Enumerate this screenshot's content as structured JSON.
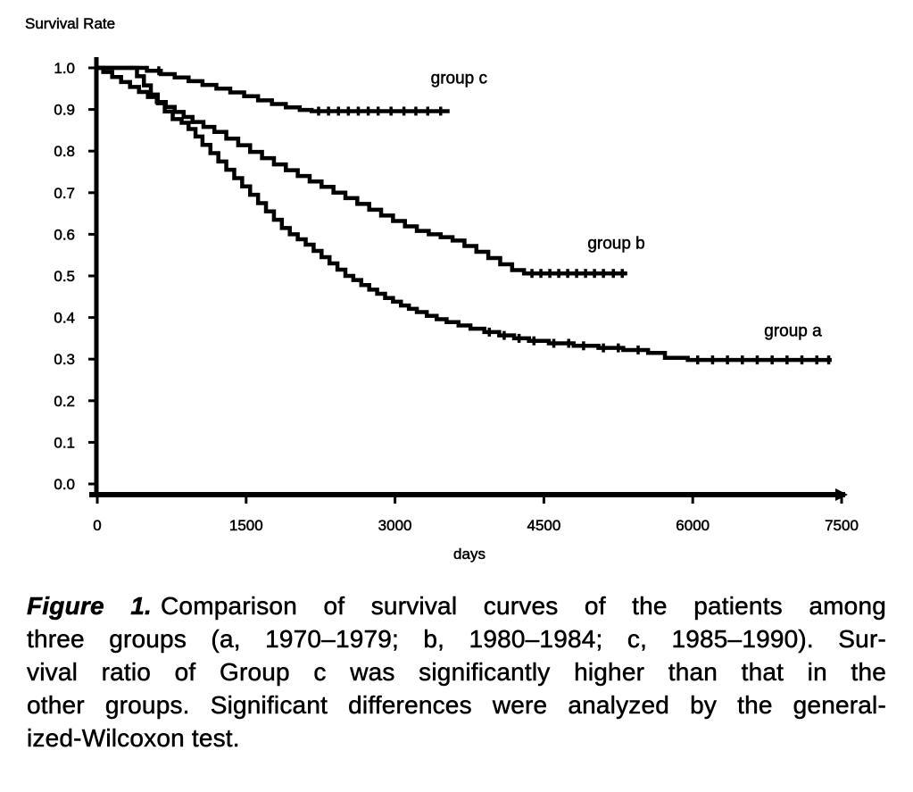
{
  "page": {
    "background_color": "#ffffff",
    "ink_color": "#000000"
  },
  "chart_data": {
    "type": "line",
    "style": "kaplan-meier-step",
    "title": "",
    "ylabel": "Survival Rate",
    "xlabel": "days",
    "xlim": [
      0,
      7500
    ],
    "ylim": [
      0.0,
      1.0
    ],
    "grid": false,
    "legend_position": "inline-labels",
    "line_color": "#000000",
    "x_ticks": [
      {
        "value": 0,
        "label": "0"
      },
      {
        "value": 1500,
        "label": "1500"
      },
      {
        "value": 3000,
        "label": "3000"
      },
      {
        "value": 4500,
        "label": "4500"
      },
      {
        "value": 6000,
        "label": "6000"
      },
      {
        "value": 7500,
        "label": "7500"
      }
    ],
    "y_ticks": [
      {
        "value": 1.0,
        "label": "1.0"
      },
      {
        "value": 0.9,
        "label": "0.9"
      },
      {
        "value": 0.8,
        "label": "0.8"
      },
      {
        "value": 0.7,
        "label": "0.7"
      },
      {
        "value": 0.6,
        "label": "0.6"
      },
      {
        "value": 0.5,
        "label": "0.5"
      },
      {
        "value": 0.4,
        "label": "0.4"
      },
      {
        "value": 0.3,
        "label": "0.3"
      },
      {
        "value": 0.2,
        "label": "0.2"
      },
      {
        "value": 0.1,
        "label": "0.1"
      },
      {
        "value": 0.0,
        "label": "0.0"
      }
    ],
    "series": [
      {
        "name": "group c",
        "label": "group c",
        "label_at": {
          "day": 3360,
          "value": 0.975
        },
        "end_day": 3550,
        "points": [
          [
            0,
            1.0
          ],
          [
            380,
            1.0
          ],
          [
            500,
            0.993
          ],
          [
            640,
            0.985
          ],
          [
            780,
            0.977
          ],
          [
            920,
            0.968
          ],
          [
            1060,
            0.959
          ],
          [
            1200,
            0.95
          ],
          [
            1340,
            0.941
          ],
          [
            1480,
            0.932
          ],
          [
            1620,
            0.922
          ],
          [
            1760,
            0.913
          ],
          [
            1900,
            0.905
          ],
          [
            2040,
            0.899
          ],
          [
            2160,
            0.896
          ],
          [
            3550,
            0.896
          ]
        ],
        "censor_days": [
          620,
          2230,
          2330,
          2430,
          2530,
          2630,
          2730,
          2830,
          2960,
          3090,
          3210,
          3330,
          3460
        ]
      },
      {
        "name": "group b",
        "label": "group b",
        "label_at": {
          "day": 4940,
          "value": 0.578
        },
        "end_day": 5340,
        "points": [
          [
            0,
            1.0
          ],
          [
            60,
            0.99
          ],
          [
            150,
            0.978
          ],
          [
            240,
            0.966
          ],
          [
            330,
            0.954
          ],
          [
            420,
            0.942
          ],
          [
            510,
            0.93
          ],
          [
            600,
            0.918
          ],
          [
            690,
            0.906
          ],
          [
            780,
            0.894
          ],
          [
            870,
            0.882
          ],
          [
            960,
            0.87
          ],
          [
            1070,
            0.858
          ],
          [
            1180,
            0.846
          ],
          [
            1300,
            0.83
          ],
          [
            1420,
            0.814
          ],
          [
            1540,
            0.798
          ],
          [
            1660,
            0.783
          ],
          [
            1780,
            0.768
          ],
          [
            1900,
            0.754
          ],
          [
            2020,
            0.74
          ],
          [
            2140,
            0.727
          ],
          [
            2260,
            0.714
          ],
          [
            2380,
            0.7
          ],
          [
            2500,
            0.687
          ],
          [
            2620,
            0.673
          ],
          [
            2740,
            0.659
          ],
          [
            2860,
            0.645
          ],
          [
            2980,
            0.632
          ],
          [
            3100,
            0.619
          ],
          [
            3220,
            0.608
          ],
          [
            3340,
            0.6
          ],
          [
            3460,
            0.593
          ],
          [
            3580,
            0.585
          ],
          [
            3700,
            0.572
          ],
          [
            3820,
            0.558
          ],
          [
            3940,
            0.543
          ],
          [
            4060,
            0.528
          ],
          [
            4180,
            0.514
          ],
          [
            4300,
            0.506
          ],
          [
            5340,
            0.506
          ]
        ],
        "censor_days": [
          4380,
          4470,
          4560,
          4650,
          4740,
          4830,
          4920,
          5010,
          5100,
          5200,
          5290
        ]
      },
      {
        "name": "group a",
        "label": "group a",
        "label_at": {
          "day": 6720,
          "value": 0.368
        },
        "end_day": 7400,
        "points": [
          [
            0,
            1.0
          ],
          [
            320,
            1.0
          ],
          [
            400,
            0.98
          ],
          [
            470,
            0.958
          ],
          [
            540,
            0.936
          ],
          [
            610,
            0.915
          ],
          [
            680,
            0.895
          ],
          [
            760,
            0.877
          ],
          [
            850,
            0.868
          ],
          [
            920,
            0.853
          ],
          [
            990,
            0.835
          ],
          [
            1060,
            0.815
          ],
          [
            1140,
            0.795
          ],
          [
            1220,
            0.775
          ],
          [
            1300,
            0.755
          ],
          [
            1380,
            0.735
          ],
          [
            1460,
            0.715
          ],
          [
            1540,
            0.695
          ],
          [
            1620,
            0.675
          ],
          [
            1700,
            0.655
          ],
          [
            1780,
            0.635
          ],
          [
            1860,
            0.615
          ],
          [
            1940,
            0.6
          ],
          [
            2020,
            0.588
          ],
          [
            2100,
            0.575
          ],
          [
            2180,
            0.56
          ],
          [
            2260,
            0.545
          ],
          [
            2340,
            0.53
          ],
          [
            2420,
            0.515
          ],
          [
            2500,
            0.5
          ],
          [
            2580,
            0.49
          ],
          [
            2660,
            0.478
          ],
          [
            2740,
            0.467
          ],
          [
            2820,
            0.457
          ],
          [
            2900,
            0.447
          ],
          [
            2980,
            0.438
          ],
          [
            3060,
            0.429
          ],
          [
            3140,
            0.421
          ],
          [
            3220,
            0.413
          ],
          [
            3320,
            0.404
          ],
          [
            3420,
            0.396
          ],
          [
            3520,
            0.389
          ],
          [
            3640,
            0.381
          ],
          [
            3760,
            0.373
          ],
          [
            3900,
            0.365
          ],
          [
            4050,
            0.357
          ],
          [
            4200,
            0.35
          ],
          [
            4350,
            0.344
          ],
          [
            4550,
            0.338
          ],
          [
            4800,
            0.332
          ],
          [
            5050,
            0.327
          ],
          [
            5300,
            0.322
          ],
          [
            5550,
            0.315
          ],
          [
            5720,
            0.303
          ],
          [
            5950,
            0.298
          ],
          [
            7400,
            0.298
          ]
        ],
        "censor_days": [
          3950,
          4100,
          4250,
          4400,
          4600,
          4750,
          4900,
          5100,
          5250,
          5450,
          6050,
          6200,
          6350,
          6500,
          6650,
          6800,
          6950,
          7100,
          7250,
          7370
        ]
      }
    ]
  },
  "caption": {
    "label": "Figure 1.",
    "lines": [
      "Comparison of survival curves of the patients among",
      "three groups (a, 1970–1979; b, 1980–1984; c, 1985–1990). Sur-",
      "vival ratio of Group c was significantly higher than that in the",
      "other groups. Significant differences were analyzed by the general-",
      "ized-Wilcoxon test."
    ]
  }
}
